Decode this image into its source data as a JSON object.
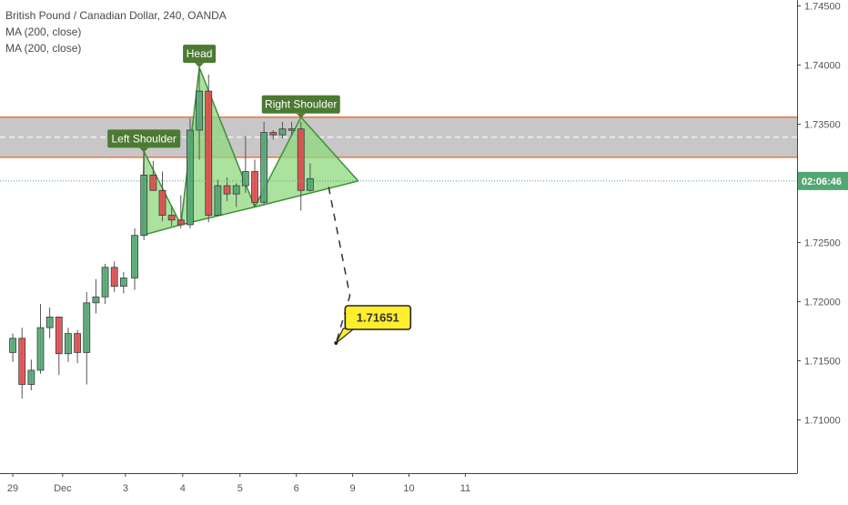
{
  "legend": {
    "symbol": "British Pound / Canadian Dollar, 240, OANDA",
    "indicator_1": "MA (200, close)",
    "indicator_2": "MA (200, close)"
  },
  "price_label": "02:06:46",
  "target_label": "1.71651",
  "colors": {
    "up": "#53a772",
    "down": "#e04b4b",
    "zone_fill": "#bdbdbd",
    "zone_border": "#e9773f",
    "pattern_fill": "#8fd87e",
    "pattern_stroke": "#3f8f3a",
    "tag_bg": "#4c7a33",
    "target_bg": "#ffee2e",
    "axis_text": "#555555",
    "price_bg": "#53a772"
  },
  "chart_data": {
    "type": "candlestick",
    "symbol": "British Pound / Canadian Dollar",
    "interval": "240",
    "source": "OANDA",
    "ylim": [
      1.7055,
      1.7455
    ],
    "yticks": [
      1.71,
      1.715,
      1.72,
      1.725,
      1.73,
      1.735,
      1.74,
      1.745
    ],
    "ytick_labels": [
      "1.71000",
      "1.71500",
      "1.72000",
      "1.72500",
      "1.73000",
      "1.73500",
      "1.74000",
      "1.74500"
    ],
    "xlim": [
      0,
      55
    ],
    "xticks": [
      {
        "label": "29",
        "x": 0.4
      },
      {
        "label": "Dec",
        "x": 5.8
      },
      {
        "label": "3",
        "x": 12.6
      },
      {
        "label": "4",
        "x": 18.8
      },
      {
        "label": "5",
        "x": 25.0
      },
      {
        "label": "6",
        "x": 31.1
      },
      {
        "label": "9",
        "x": 37.2
      },
      {
        "label": "10",
        "x": 43.3
      },
      {
        "label": "11",
        "x": 49.4
      }
    ],
    "candles": [
      {
        "x": 0.4,
        "o": 1.7157,
        "h": 1.7173,
        "l": 1.7149,
        "c": 1.7169
      },
      {
        "x": 1.4,
        "o": 1.7169,
        "h": 1.7178,
        "l": 1.7118,
        "c": 1.713
      },
      {
        "x": 2.4,
        "o": 1.713,
        "h": 1.7151,
        "l": 1.7125,
        "c": 1.7142
      },
      {
        "x": 3.4,
        "o": 1.7142,
        "h": 1.7198,
        "l": 1.7139,
        "c": 1.7178
      },
      {
        "x": 4.4,
        "o": 1.7178,
        "h": 1.7195,
        "l": 1.7169,
        "c": 1.7187
      },
      {
        "x": 5.4,
        "o": 1.7187,
        "h": 1.7187,
        "l": 1.7138,
        "c": 1.7156
      },
      {
        "x": 6.4,
        "o": 1.7156,
        "h": 1.7178,
        "l": 1.7149,
        "c": 1.7173
      },
      {
        "x": 7.4,
        "o": 1.7173,
        "h": 1.7176,
        "l": 1.7148,
        "c": 1.7157
      },
      {
        "x": 8.4,
        "o": 1.7157,
        "h": 1.7208,
        "l": 1.713,
        "c": 1.7199
      },
      {
        "x": 9.4,
        "o": 1.7199,
        "h": 1.7219,
        "l": 1.719,
        "c": 1.7204
      },
      {
        "x": 10.4,
        "o": 1.7204,
        "h": 1.7232,
        "l": 1.7198,
        "c": 1.7229
      },
      {
        "x": 11.4,
        "o": 1.7229,
        "h": 1.7234,
        "l": 1.7208,
        "c": 1.7213
      },
      {
        "x": 12.4,
        "o": 1.7213,
        "h": 1.7225,
        "l": 1.7207,
        "c": 1.722
      },
      {
        "x": 13.6,
        "o": 1.722,
        "h": 1.7262,
        "l": 1.721,
        "c": 1.7256
      },
      {
        "x": 14.6,
        "o": 1.7256,
        "h": 1.7327,
        "l": 1.7252,
        "c": 1.7307
      },
      {
        "x": 15.6,
        "o": 1.7307,
        "h": 1.7319,
        "l": 1.7294,
        "c": 1.7294
      },
      {
        "x": 16.6,
        "o": 1.7294,
        "h": 1.731,
        "l": 1.7268,
        "c": 1.7273
      },
      {
        "x": 17.6,
        "o": 1.7273,
        "h": 1.7281,
        "l": 1.7264,
        "c": 1.7269
      },
      {
        "x": 18.6,
        "o": 1.7269,
        "h": 1.729,
        "l": 1.7262,
        "c": 1.7265
      },
      {
        "x": 19.6,
        "o": 1.7265,
        "h": 1.7355,
        "l": 1.7262,
        "c": 1.7345
      },
      {
        "x": 20.6,
        "o": 1.7345,
        "h": 1.7398,
        "l": 1.732,
        "c": 1.7378
      },
      {
        "x": 21.6,
        "o": 1.7378,
        "h": 1.7392,
        "l": 1.7267,
        "c": 1.7273
      },
      {
        "x": 22.6,
        "o": 1.7273,
        "h": 1.7303,
        "l": 1.7272,
        "c": 1.7298
      },
      {
        "x": 23.6,
        "o": 1.7298,
        "h": 1.7305,
        "l": 1.7285,
        "c": 1.7291
      },
      {
        "x": 24.6,
        "o": 1.7291,
        "h": 1.73,
        "l": 1.728,
        "c": 1.7298
      },
      {
        "x": 25.6,
        "o": 1.7298,
        "h": 1.734,
        "l": 1.7292,
        "c": 1.731
      },
      {
        "x": 26.6,
        "o": 1.731,
        "h": 1.732,
        "l": 1.728,
        "c": 1.7284
      },
      {
        "x": 27.6,
        "o": 1.7284,
        "h": 1.7352,
        "l": 1.7282,
        "c": 1.7343
      },
      {
        "x": 28.6,
        "o": 1.7343,
        "h": 1.7345,
        "l": 1.7337,
        "c": 1.7341
      },
      {
        "x": 29.6,
        "o": 1.7341,
        "h": 1.7352,
        "l": 1.7338,
        "c": 1.7346
      },
      {
        "x": 30.6,
        "o": 1.7346,
        "h": 1.7352,
        "l": 1.734,
        "c": 1.7346
      },
      {
        "x": 31.6,
        "o": 1.7346,
        "h": 1.7352,
        "l": 1.7277,
        "c": 1.7294
      },
      {
        "x": 32.6,
        "o": 1.7294,
        "h": 1.7317,
        "l": 1.7293,
        "c": 1.7304
      }
    ],
    "resistance_zone": {
      "low": 1.7322,
      "high": 1.7356,
      "mid": 1.7339
    },
    "current_price": 1.7302,
    "pattern": {
      "name": "Head and Shoulders",
      "labels": [
        "Left Shoulder",
        "Head",
        "Right Shoulder"
      ],
      "left_shoulder": [
        [
          14.4,
          1.7256
        ],
        [
          14.6,
          1.7327
        ],
        [
          18.6,
          1.7265
        ]
      ],
      "head": [
        [
          18.6,
          1.7265
        ],
        [
          20.6,
          1.7398
        ],
        [
          26.6,
          1.728
        ]
      ],
      "right_shoulder": [
        [
          26.6,
          1.728
        ],
        [
          31.6,
          1.7356
        ],
        [
          37.8,
          1.7302
        ]
      ],
      "projection": [
        [
          34.6,
          1.7297
        ],
        [
          36.9,
          1.7205
        ],
        [
          35.4,
          1.7165
        ]
      ]
    },
    "target": 1.71651
  }
}
